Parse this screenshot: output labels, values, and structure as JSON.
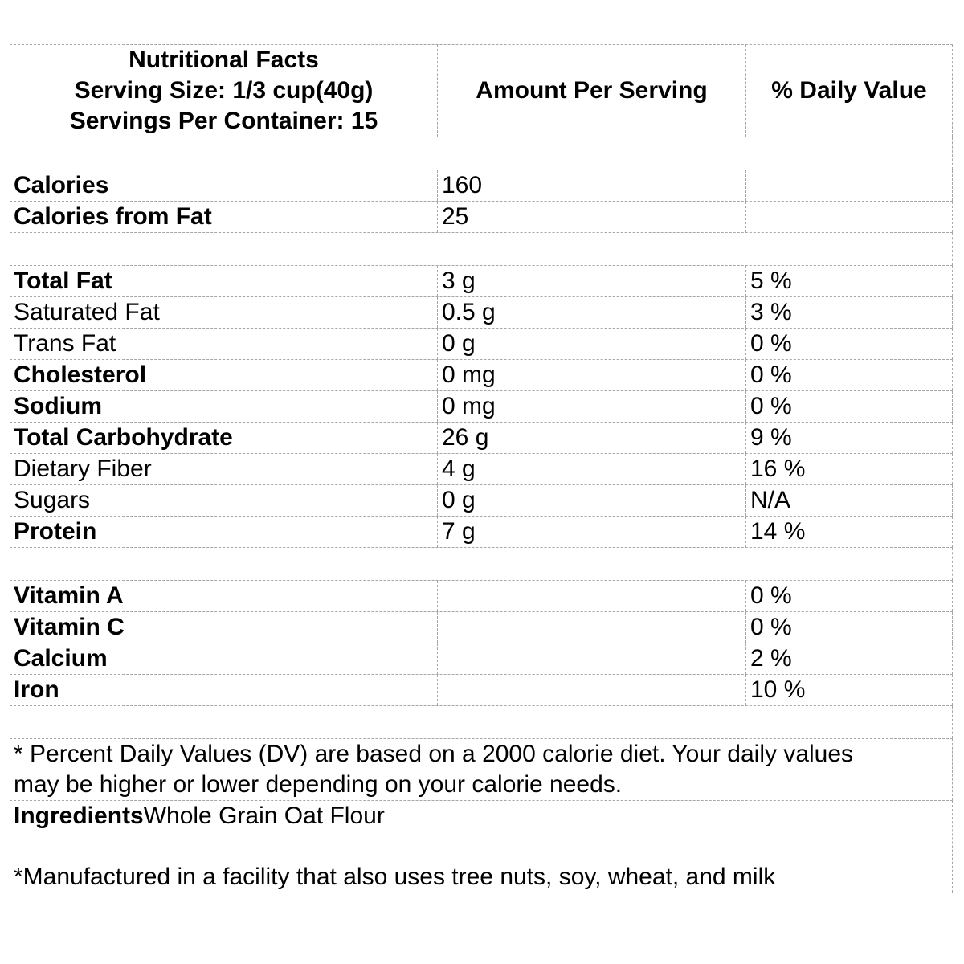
{
  "colors": {
    "border": "#a6a6a6",
    "text": "#000000",
    "background": "#ffffff"
  },
  "table": {
    "header": {
      "title": "Nutritional Facts",
      "serving_size": "Serving Size: 1/3 cup(40g)",
      "servings_per_container": "Servings Per Container: 15",
      "col_amount": "Amount Per Serving",
      "col_daily_value": "% Daily Value"
    },
    "calorie_rows": [
      {
        "label": "Calories",
        "amount": "160",
        "dv": ""
      },
      {
        "label": "Calories from Fat",
        "amount": "25",
        "dv": ""
      }
    ],
    "nutrient_rows": [
      {
        "label": "Total Fat",
        "amount": "3 g",
        "dv": "5 %"
      },
      {
        "label": "Saturated Fat",
        "amount": "0.5 g",
        "dv": "3 %"
      },
      {
        "label": "Trans Fat",
        "amount": "0 g",
        "dv": "0 %"
      },
      {
        "label": "Cholesterol",
        "amount": "0 mg",
        "dv": "0 %"
      },
      {
        "label": "Sodium",
        "amount": "0 mg",
        "dv": "0 %"
      },
      {
        "label": "Total Carbohydrate",
        "amount": "26 g",
        "dv": "9 %"
      },
      {
        "label": "Dietary Fiber",
        "amount": "4 g",
        "dv": "16 %"
      },
      {
        "label": "Sugars",
        "amount": "0 g",
        "dv": "N/A"
      },
      {
        "label": "Protein",
        "amount": "7 g",
        "dv": "14 %"
      }
    ],
    "vitamin_rows": [
      {
        "label": "Vitamin A",
        "amount": "",
        "dv": "0 %"
      },
      {
        "label": "Vitamin C",
        "amount": "",
        "dv": "0 %"
      },
      {
        "label": "Calcium",
        "amount": "",
        "dv": "2 %"
      },
      {
        "label": "Iron",
        "amount": "",
        "dv": "10 %"
      }
    ],
    "footnote": {
      "line1": "* Percent Daily Values (DV) are based on a 2000 calorie diet. Your daily values",
      "line2": "may be higher or lower depending on your calorie needs."
    },
    "ingredients": {
      "label": "Ingredients",
      "value": "Whole Grain Oat Flour"
    },
    "allergen_note": "*Manufactured in a facility that also uses tree nuts, soy, wheat, and milk"
  }
}
